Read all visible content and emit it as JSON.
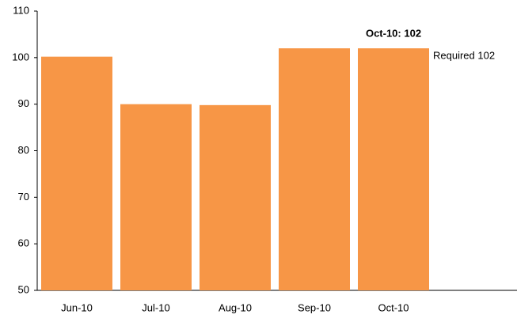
{
  "chart_data": {
    "type": "bar",
    "categories": [
      "Jun-10",
      "Jul-10",
      "Aug-10",
      "Sep-10",
      "Oct-10",
      null
    ],
    "values": [
      100.2,
      90,
      89.8,
      102,
      102,
      null
    ],
    "color": "#f79646",
    "ylim": [
      50,
      110
    ],
    "yticks": [
      50,
      60,
      70,
      80,
      90,
      100,
      110
    ],
    "grid": false,
    "annotations": [
      {
        "text": "Oct-10: 102"
      },
      {
        "text": "Required 102"
      }
    ]
  }
}
